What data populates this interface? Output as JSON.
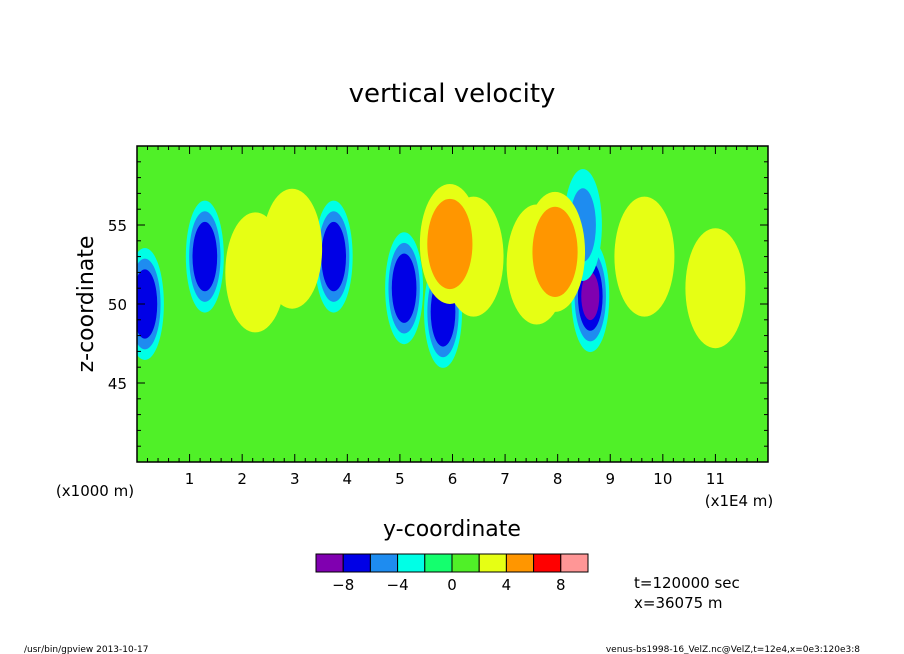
{
  "chart_data": {
    "type": "heatmap",
    "title": "vertical velocity",
    "xlabel": "y-coordinate",
    "ylabel": "z-coordinate",
    "x_scale_note": "(x1E4 m)",
    "y_scale_note": "(x1000 m)",
    "xlim": [
      0,
      120000
    ],
    "ylim": [
      40000,
      60000
    ],
    "x_ticks": [
      1,
      2,
      3,
      4,
      5,
      6,
      7,
      8,
      9,
      10,
      11
    ],
    "y_ticks": [
      45,
      50,
      55
    ],
    "levels": [
      -10,
      -8,
      -6,
      -4,
      -2,
      0,
      2,
      4,
      6,
      8,
      10
    ],
    "colors": [
      "#8000b0",
      "#0000e6",
      "#1e8cf0",
      "#00ffe6",
      "#14ff6e",
      "#50f028",
      "#e6ff14",
      "#ff9600",
      "#ff0000",
      "#ff9696"
    ],
    "colorbar_labels": [
      {
        "level": -8,
        "text": "−8"
      },
      {
        "level": -4,
        "text": "−4"
      },
      {
        "level": 0,
        "text": "0"
      },
      {
        "level": 4,
        "text": "4"
      },
      {
        "level": 8,
        "text": "8"
      }
    ],
    "features": [
      {
        "y": 1500,
        "z": 50000,
        "value": -7.5
      },
      {
        "y": 12900,
        "z": 53000,
        "value": -7
      },
      {
        "y": 37400,
        "z": 53000,
        "value": -7
      },
      {
        "y": 50800,
        "z": 51000,
        "value": -7
      },
      {
        "y": 58200,
        "z": 49500,
        "value": -7
      },
      {
        "y": 86200,
        "z": 50500,
        "value": -8
      },
      {
        "y": 84800,
        "z": 55000,
        "value": -4
      },
      {
        "y": 22500,
        "z": 52000,
        "value": 3
      },
      {
        "y": 29500,
        "z": 53500,
        "value": 3
      },
      {
        "y": 64000,
        "z": 53000,
        "value": 3
      },
      {
        "y": 76000,
        "z": 52500,
        "value": 3
      },
      {
        "y": 79500,
        "z": 53300,
        "value": 5
      },
      {
        "y": 59500,
        "z": 53800,
        "value": 5
      },
      {
        "y": 96500,
        "z": 53000,
        "value": 2.5
      },
      {
        "y": 110000,
        "z": 51000,
        "value": 3
      }
    ]
  },
  "annotations": {
    "time": "t=120000 sec",
    "position": "x=36075 m"
  },
  "footer": {
    "left": "/usr/bin/gpview   2013-10-17",
    "right": "venus-bs1998-16_VelZ.nc@VelZ,t=12e4,x=0e3:120e3:8"
  }
}
